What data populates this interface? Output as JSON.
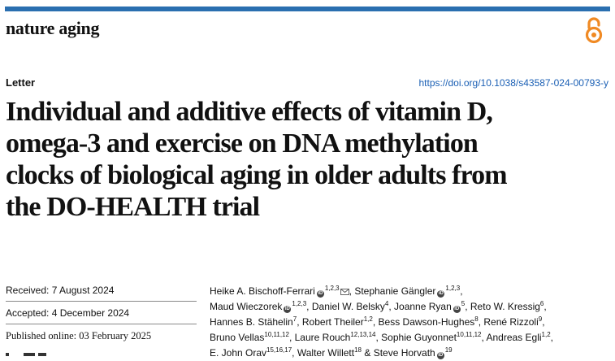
{
  "header": {
    "journal": "nature aging",
    "open_access_icon": "open-access-lock-icon",
    "bar_color": "#2a6fb0"
  },
  "article": {
    "type": "Letter",
    "doi": "https://doi.org/10.1038/s43587-024-00793-y",
    "title_lines": [
      "Individual and additive effects of vitamin D,",
      "omega-3 and exercise on DNA methylation",
      "clocks of biological aging in older adults from",
      "the DO-HEALTH trial"
    ]
  },
  "dates": {
    "received": "Received: 7 August 2024",
    "accepted": "Accepted: 4 December 2024",
    "published": "Published online: 03 February 2025"
  },
  "authors": [
    {
      "name": "Heike A. Bischoff-Ferrari",
      "aff": "1,2,3",
      "orcid": true,
      "email": true,
      "sep": ","
    },
    {
      "name": "Stephanie Gängler",
      "aff": "1,2,3",
      "orcid": true,
      "sep": ","
    },
    {
      "name": "Maud Wieczorek",
      "aff": "1,2,3",
      "orcid": true,
      "sep": ","
    },
    {
      "name": "Daniel W. Belsky",
      "aff": "4",
      "sep": ","
    },
    {
      "name": "Joanne Ryan",
      "aff": "5",
      "orcid": true,
      "sep": ","
    },
    {
      "name": "Reto W. Kressig",
      "aff": "6",
      "sep": ","
    },
    {
      "name": "Hannes B. Stähelin",
      "aff": "7",
      "sep": ","
    },
    {
      "name": "Robert Theiler",
      "aff": "1,2",
      "sep": ","
    },
    {
      "name": "Bess Dawson-Hughes",
      "aff": "8",
      "sep": ","
    },
    {
      "name": "René Rizzoli",
      "aff": "9",
      "sep": ","
    },
    {
      "name": "Bruno Vellas",
      "aff": "10,11,12",
      "sep": ","
    },
    {
      "name": "Laure Rouch",
      "aff": "12,13,14",
      "sep": ","
    },
    {
      "name": "Sophie Guyonnet",
      "aff": "10,11,12",
      "sep": ","
    },
    {
      "name": "Andreas Egli",
      "aff": "1,2",
      "sep": ","
    },
    {
      "name": "E. John Orav",
      "aff": "15,16,17",
      "sep": ","
    },
    {
      "name": "Walter Willett",
      "aff": "18",
      "sep": " &"
    },
    {
      "name": "Steve Horvath",
      "aff": "19",
      "orcid": true,
      "sep": ""
    }
  ]
}
